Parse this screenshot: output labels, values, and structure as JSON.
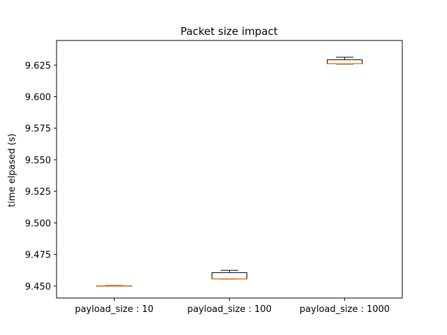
{
  "chart_data": {
    "type": "box",
    "title": "Packet size impact",
    "xlabel": "",
    "ylabel": "time elpased (s)",
    "ylim": [
      9.4405,
      9.6445
    ],
    "yticks": [
      9.45,
      9.475,
      9.5,
      9.525,
      9.55,
      9.575,
      9.6,
      9.625
    ],
    "ytick_labels": [
      "9.450",
      "9.475",
      "9.500",
      "9.525",
      "9.550",
      "9.575",
      "9.600",
      "9.625"
    ],
    "categories": [
      "payload_size : 10",
      "payload_size : 100",
      "payload_size : 1000"
    ],
    "boxes": [
      {
        "label": "payload_size : 10",
        "whislo": 9.45,
        "q1": 9.45,
        "med": 9.45,
        "q3": 9.4502,
        "whishi": 9.4504
      },
      {
        "label": "payload_size : 100",
        "whislo": 9.4555,
        "q1": 9.4556,
        "med": 9.4557,
        "q3": 9.4606,
        "whishi": 9.4625
      },
      {
        "label": "payload_size : 1000",
        "whislo": 9.6258,
        "q1": 9.626,
        "med": 9.6261,
        "q3": 9.6292,
        "whishi": 9.6312
      }
    ],
    "grid": false,
    "colors": {
      "box": "#000000",
      "median": "#ff7f0e",
      "axes": "#000000"
    }
  }
}
